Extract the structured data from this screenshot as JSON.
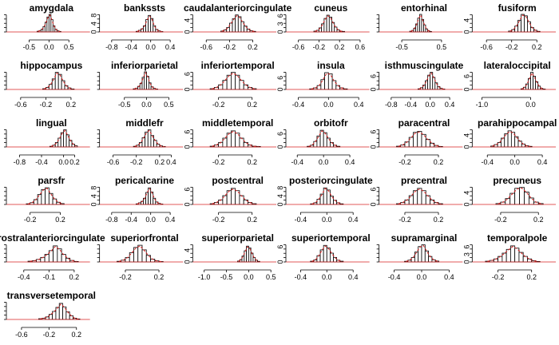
{
  "figure": {
    "background": "#ffffff",
    "bar_fill": "#ffffff",
    "bar_stroke": "#000000",
    "curve_color": "#d62020",
    "curve_style": "dashed"
  },
  "chart_data": [
    {
      "type": "histogram",
      "title": "amygdala",
      "xticks": [
        -0.5,
        0.0,
        0.5
      ],
      "xlim": [
        -0.95,
        0.95
      ],
      "yticks": [],
      "ymax": 10,
      "bins": {
        "start": -0.3,
        "width": 0.05,
        "counts": [
          0.4,
          0.8,
          1.5,
          3.0,
          5.5,
          8.5,
          10.0,
          7.0,
          3.5,
          1.5,
          0.6,
          0.3
        ]
      }
    },
    {
      "type": "histogram",
      "title": "bankssts",
      "xticks": [
        -0.8,
        -0.4,
        0.0,
        0.4
      ],
      "xlim": [
        -0.95,
        0.6
      ],
      "yticks": [
        0,
        4,
        8
      ],
      "ymax": 8.5,
      "bins": {
        "start": -0.3,
        "width": 0.05,
        "counts": [
          0.3,
          0.8,
          1.5,
          3.0,
          6.0,
          8.0,
          6.5,
          3.0,
          1.2,
          0.5,
          0.2
        ]
      }
    },
    {
      "type": "histogram",
      "title": "caudalanteriorcingulate",
      "xticks": [
        -0.6,
        -0.2,
        0.2
      ],
      "xlim": [
        -0.75,
        0.55
      ],
      "yticks": [
        0,
        4
      ],
      "ymax": 6,
      "bins": {
        "start": -0.35,
        "width": 0.05,
        "counts": [
          0.3,
          0.7,
          1.5,
          3.0,
          4.5,
          5.8,
          5.2,
          3.5,
          2.0,
          1.0,
          0.4,
          0.2
        ]
      }
    },
    {
      "type": "histogram",
      "title": "cuneus",
      "xticks": [
        -0.6,
        -0.2,
        0.2,
        0.6
      ],
      "xlim": [
        -0.75,
        0.72
      ],
      "yticks": [
        0,
        3,
        6
      ],
      "ymax": 6.5,
      "bins": {
        "start": -0.3,
        "width": 0.05,
        "counts": [
          0.3,
          0.6,
          1.5,
          3.0,
          5.0,
          6.2,
          5.5,
          3.5,
          1.8,
          0.8,
          0.3,
          0.2
        ]
      }
    },
    {
      "type": "histogram",
      "title": "entorhinal",
      "xticks": [
        -0.5,
        0.5
      ],
      "xlim": [
        -0.95,
        0.95
      ],
      "yticks": [],
      "ymax": 7,
      "bins": {
        "start": -0.3,
        "width": 0.05,
        "counts": [
          0.3,
          0.6,
          1.5,
          3.2,
          5.5,
          7.0,
          5.0,
          2.8,
          1.2,
          0.5,
          0.2
        ]
      }
    },
    {
      "type": "histogram",
      "title": "fusiform",
      "xticks": [
        -0.6,
        -0.2,
        0.2
      ],
      "xlim": [
        -0.75,
        0.45
      ],
      "yticks": [
        0,
        4
      ],
      "ymax": 6,
      "bins": {
        "start": -0.25,
        "width": 0.05,
        "counts": [
          0.3,
          0.8,
          2.0,
          4.0,
          6.0,
          5.5,
          3.5,
          1.5,
          0.6,
          0.2
        ]
      }
    },
    {
      "type": "histogram",
      "title": "hippocampus",
      "xticks": [
        -0.6,
        -0.2,
        0.2
      ],
      "xlim": [
        -0.75,
        0.45
      ],
      "yticks": [],
      "ymax": 7,
      "bins": {
        "start": -0.25,
        "width": 0.05,
        "counts": [
          0.3,
          0.8,
          2.0,
          4.2,
          6.8,
          6.0,
          3.5,
          1.5,
          0.6,
          0.2
        ]
      }
    },
    {
      "type": "histogram",
      "title": "inferiorparietal",
      "xticks": [
        -0.5,
        0.0,
        0.5
      ],
      "xlim": [
        -0.95,
        0.75
      ],
      "yticks": [],
      "ymax": 8,
      "bins": {
        "start": -0.3,
        "width": 0.05,
        "counts": [
          0.3,
          0.6,
          1.4,
          2.8,
          5.5,
          8.0,
          6.0,
          3.0,
          1.2,
          0.5,
          0.2
        ]
      }
    },
    {
      "type": "histogram",
      "title": "inferiortemporal",
      "xticks": [
        -0.2,
        0.2
      ],
      "xlim": [
        -0.45,
        0.45
      ],
      "yticks": [
        0,
        6
      ],
      "ymax": 6.8,
      "bins": {
        "start": -0.3,
        "width": 0.05,
        "counts": [
          0.3,
          0.8,
          1.8,
          3.5,
          5.5,
          6.6,
          5.5,
          3.5,
          1.8,
          0.8,
          0.3
        ]
      }
    },
    {
      "type": "histogram",
      "title": "insula",
      "xticks": [
        -0.4,
        0.0,
        0.4
      ],
      "xlim": [
        -0.5,
        0.5
      ],
      "yticks": [
        0,
        6
      ],
      "ymax": 9,
      "bins": {
        "start": -0.25,
        "width": 0.05,
        "counts": [
          0.3,
          0.8,
          2.0,
          5.0,
          8.6,
          8.0,
          4.5,
          2.0,
          0.8,
          0.3
        ]
      }
    },
    {
      "type": "histogram",
      "title": "isthmuscingulate",
      "xticks": [
        -0.8,
        -0.4,
        0.0,
        0.4
      ],
      "xlim": [
        -0.95,
        0.6
      ],
      "yticks": [
        0,
        6
      ],
      "ymax": 8,
      "bins": {
        "start": -0.25,
        "width": 0.05,
        "counts": [
          0.3,
          0.8,
          2.0,
          4.0,
          6.5,
          7.8,
          5.5,
          3.0,
          1.3,
          0.5,
          0.2
        ]
      }
    },
    {
      "type": "histogram",
      "title": "lateraloccipital",
      "xticks": [
        -1.0,
        0.0
      ],
      "xlim": [
        -1.1,
        0.45
      ],
      "yticks": [
        0,
        6
      ],
      "ymax": 8,
      "bins": {
        "start": -0.2,
        "width": 0.05,
        "counts": [
          0.3,
          1.0,
          2.5,
          5.0,
          7.8,
          6.0,
          3.5,
          1.5,
          0.5,
          0.2
        ]
      }
    },
    {
      "type": "histogram",
      "title": "lingual",
      "xticks": [
        -0.8,
        -0.4,
        0.0,
        0.2
      ],
      "xlim": [
        -0.95,
        0.42
      ],
      "yticks": [],
      "ymax": 8,
      "bins": {
        "start": -0.25,
        "width": 0.05,
        "counts": [
          0.3,
          0.8,
          2.0,
          4.0,
          6.5,
          7.8,
          5.5,
          3.0,
          1.3,
          0.5
        ]
      }
    },
    {
      "type": "histogram",
      "title": "middlefr",
      "xticks": [
        -0.6,
        -0.2,
        0.2,
        0.4
      ],
      "xlim": [
        -0.75,
        0.55
      ],
      "yticks": [],
      "ymax": 8,
      "bins": {
        "start": -0.25,
        "width": 0.05,
        "counts": [
          0.3,
          0.8,
          2.0,
          4.2,
          6.8,
          7.8,
          5.2,
          3.0,
          1.3,
          0.5,
          0.2
        ]
      }
    },
    {
      "type": "histogram",
      "title": "middletemporal",
      "xticks": [
        -0.2,
        0.2
      ],
      "xlim": [
        -0.45,
        0.45
      ],
      "yticks": [
        0,
        6
      ],
      "ymax": 7,
      "bins": {
        "start": -0.3,
        "width": 0.05,
        "counts": [
          0.3,
          0.8,
          1.8,
          3.5,
          5.5,
          6.4,
          5.5,
          3.5,
          1.8,
          0.8,
          0.3,
          0.2
        ]
      }
    },
    {
      "type": "histogram",
      "title": "orbitofr",
      "xticks": [
        -0.4,
        0.0,
        0.4
      ],
      "xlim": [
        -0.5,
        0.65
      ],
      "yticks": [
        0,
        6
      ],
      "ymax": 8,
      "bins": {
        "start": -0.25,
        "width": 0.05,
        "counts": [
          0.3,
          0.8,
          2.5,
          5.0,
          7.6,
          6.5,
          4.0,
          2.0,
          0.8,
          0.3
        ]
      }
    },
    {
      "type": "histogram",
      "title": "paracentral",
      "xticks": [
        -0.2,
        0.2
      ],
      "xlim": [
        -0.45,
        0.45
      ],
      "yticks": [
        0,
        6
      ],
      "ymax": 7,
      "bins": {
        "start": -0.3,
        "width": 0.05,
        "counts": [
          0.3,
          0.8,
          2.0,
          3.8,
          5.8,
          6.2,
          5.0,
          3.0,
          1.5,
          0.6,
          0.2
        ]
      }
    },
    {
      "type": "histogram",
      "title": "parahippocampal",
      "xticks": [
        -0.4,
        0.0,
        0.4
      ],
      "xlim": [
        -0.55,
        0.55
      ],
      "yticks": [
        0,
        4
      ],
      "ymax": 6,
      "bins": {
        "start": -0.35,
        "width": 0.05,
        "counts": [
          0.3,
          0.8,
          1.5,
          3.0,
          4.5,
          5.5,
          5.0,
          3.5,
          2.0,
          1.0,
          0.4,
          0.2
        ]
      }
    },
    {
      "type": "histogram",
      "title": "parsfr",
      "xticks": [
        -0.2,
        0.2
      ],
      "xlim": [
        -0.45,
        0.55
      ],
      "yticks": [],
      "ymax": 8,
      "bins": {
        "start": -0.25,
        "width": 0.05,
        "counts": [
          0.3,
          0.8,
          2.2,
          4.5,
          6.8,
          7.6,
          5.0,
          2.5,
          1.0,
          0.4
        ]
      }
    },
    {
      "type": "histogram",
      "title": "pericalcarine",
      "xticks": [
        -0.8,
        -0.4,
        0.0,
        0.4
      ],
      "xlim": [
        -0.95,
        0.6
      ],
      "yticks": [
        0,
        4,
        8
      ],
      "ymax": 8.5,
      "bins": {
        "start": -0.3,
        "width": 0.05,
        "counts": [
          0.3,
          0.8,
          1.5,
          3.0,
          5.8,
          8.0,
          6.0,
          3.0,
          1.2,
          0.5,
          0.2
        ]
      }
    },
    {
      "type": "histogram",
      "title": "postcentral",
      "xticks": [
        -0.2,
        0.2
      ],
      "xlim": [
        -0.45,
        0.45
      ],
      "yticks": [
        0,
        6
      ],
      "ymax": 7,
      "bins": {
        "start": -0.3,
        "width": 0.05,
        "counts": [
          0.3,
          0.8,
          1.8,
          3.5,
          5.5,
          6.4,
          5.5,
          3.5,
          1.8,
          0.8,
          0.3
        ]
      }
    },
    {
      "type": "histogram",
      "title": "posteriorcingulate",
      "xticks": [
        -0.4,
        0.0,
        0.4
      ],
      "xlim": [
        -0.55,
        0.6
      ],
      "yticks": [
        0,
        4,
        8
      ],
      "ymax": 8.5,
      "bins": {
        "start": -0.25,
        "width": 0.05,
        "counts": [
          0.3,
          0.8,
          2.5,
          5.0,
          8.0,
          7.0,
          4.0,
          2.0,
          0.8,
          0.3
        ]
      }
    },
    {
      "type": "histogram",
      "title": "precentral",
      "xticks": [
        -0.2,
        0.2
      ],
      "xlim": [
        -0.45,
        0.45
      ],
      "yticks": [
        0,
        6
      ],
      "ymax": 7,
      "bins": {
        "start": -0.3,
        "width": 0.05,
        "counts": [
          0.3,
          0.8,
          1.8,
          3.5,
          5.5,
          6.4,
          5.5,
          3.5,
          1.8,
          0.8,
          0.3
        ]
      }
    },
    {
      "type": "histogram",
      "title": "precuneus",
      "xticks": [
        -0.2,
        0.2
      ],
      "xlim": [
        -0.45,
        0.35
      ],
      "yticks": [
        0,
        4
      ],
      "ymax": 6,
      "bins": {
        "start": -0.25,
        "width": 0.05,
        "counts": [
          0.3,
          0.8,
          2.0,
          3.8,
          5.5,
          5.8,
          4.2,
          2.2,
          0.8,
          0.3
        ]
      }
    },
    {
      "type": "histogram",
      "title": "rostralanteriorcingulate",
      "xticks": [
        -0.4,
        -0.1,
        0.2
      ],
      "xlim": [
        -0.55,
        0.35
      ],
      "yticks": [],
      "ymax": 7,
      "bins": {
        "start": -0.35,
        "width": 0.05,
        "counts": [
          0.3,
          0.5,
          1.0,
          1.8,
          3.0,
          4.5,
          6.4,
          5.2,
          3.0,
          1.5,
          0.6,
          0.2
        ]
      }
    },
    {
      "type": "histogram",
      "title": "superiorfrontal",
      "xticks": [
        -0.2,
        0.2
      ],
      "xlim": [
        -0.45,
        0.45
      ],
      "yticks": [],
      "ymax": 8,
      "bins": {
        "start": -0.3,
        "width": 0.05,
        "counts": [
          0.3,
          0.8,
          2.0,
          4.2,
          6.6,
          7.6,
          5.5,
          3.0,
          1.3,
          0.5,
          0.2
        ]
      }
    },
    {
      "type": "histogram",
      "title": "superiorparietal",
      "xticks": [
        -1.0,
        -0.5,
        0.0,
        0.5
      ],
      "xlim": [
        -1.15,
        0.55
      ],
      "yticks": [
        0,
        4
      ],
      "ymax": 6,
      "bins": {
        "start": -0.25,
        "width": 0.05,
        "counts": [
          0.3,
          0.8,
          2.0,
          3.8,
          5.4,
          4.8,
          3.0,
          1.5,
          0.6,
          0.2
        ]
      }
    },
    {
      "type": "histogram",
      "title": "superiortemporal",
      "xticks": [
        -0.4,
        0.0,
        0.4
      ],
      "xlim": [
        -0.55,
        0.6
      ],
      "yticks": [
        0,
        6
      ],
      "ymax": 7,
      "bins": {
        "start": -0.25,
        "width": 0.05,
        "counts": [
          0.3,
          0.8,
          2.5,
          4.8,
          6.6,
          5.6,
          3.5,
          1.8,
          0.7,
          0.3
        ]
      }
    },
    {
      "type": "histogram",
      "title": "supramarginal",
      "xticks": [
        -0.4,
        0.0,
        0.4
      ],
      "xlim": [
        -0.55,
        0.55
      ],
      "yticks": [],
      "ymax": 8,
      "bins": {
        "start": -0.25,
        "width": 0.05,
        "counts": [
          0.3,
          0.8,
          2.0,
          4.5,
          7.0,
          7.8,
          5.0,
          2.5,
          1.0,
          0.4
        ]
      }
    },
    {
      "type": "histogram",
      "title": "temporalpole",
      "xticks": [
        -0.2,
        0.2
      ],
      "xlim": [
        -0.45,
        0.45
      ],
      "yticks": [
        0,
        3,
        6
      ],
      "ymax": 7,
      "bins": {
        "start": -0.35,
        "width": 0.05,
        "counts": [
          0.3,
          0.6,
          1.2,
          2.2,
          3.5,
          5.0,
          6.4,
          5.5,
          3.8,
          2.2,
          1.2,
          0.5,
          0.2
        ]
      }
    },
    {
      "type": "histogram",
      "title": "transversetemporal",
      "xticks": [
        -0.6,
        -0.2,
        0.2
      ],
      "xlim": [
        -0.75,
        0.35
      ],
      "yticks": [],
      "ymax": 7,
      "bins": {
        "start": -0.35,
        "width": 0.05,
        "counts": [
          0.3,
          0.5,
          1.0,
          2.0,
          3.2,
          4.8,
          6.4,
          5.0,
          3.0,
          1.5,
          0.5,
          0.2
        ]
      }
    }
  ]
}
